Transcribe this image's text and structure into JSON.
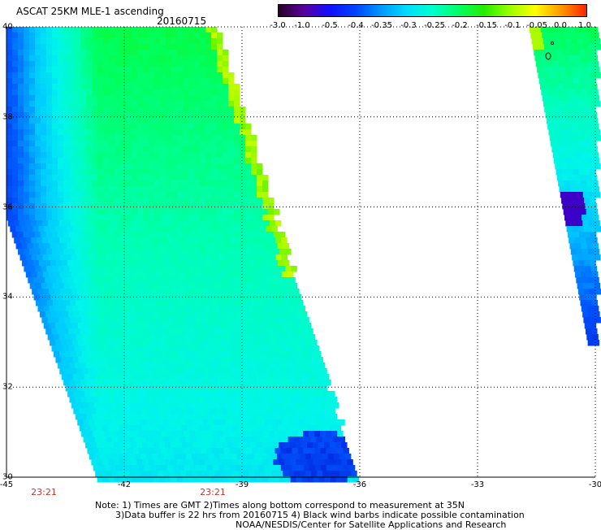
{
  "header": {
    "title": "ASCAT 25KM MLE-1 ascending",
    "date": "20160715"
  },
  "colorbar": {
    "labels": [
      "-3.0",
      "-1.0",
      "-0.5",
      "-0.4",
      "-0.35",
      "-0.3",
      "-0.25",
      "-0.2",
      "-0.15",
      "-0.1",
      "-0.05",
      "0.0",
      "1.0"
    ],
    "colors": [
      "#2a0028",
      "#5a00a0",
      "#1010ff",
      "#0044ff",
      "#0099ff",
      "#00ddff",
      "#00ffcc",
      "#00ff66",
      "#22ee00",
      "#99ff00",
      "#ffff00",
      "#ff9900",
      "#ff2200"
    ]
  },
  "map": {
    "x_ticks": [
      "-45",
      "-42",
      "-39",
      "-36",
      "-33",
      "-30"
    ],
    "y_ticks": [
      "40",
      "38",
      "36",
      "34",
      "32",
      "30"
    ],
    "lon_range": [
      -45,
      -30
    ],
    "lat_range": [
      30,
      40
    ],
    "grid": "dotted"
  },
  "times": [
    "23:21",
    "23:21"
  ],
  "notes": {
    "line1": "Note: 1) Times are GMT 2)Times along bottom correspond to measurement at 35N",
    "line2": "3)Data buffer is 22 hrs from 20160715 4) Black wind barbs indicate possible contamination",
    "line3": "NOAA/NESDIS/Center for Satellite Applications and Research"
  }
}
